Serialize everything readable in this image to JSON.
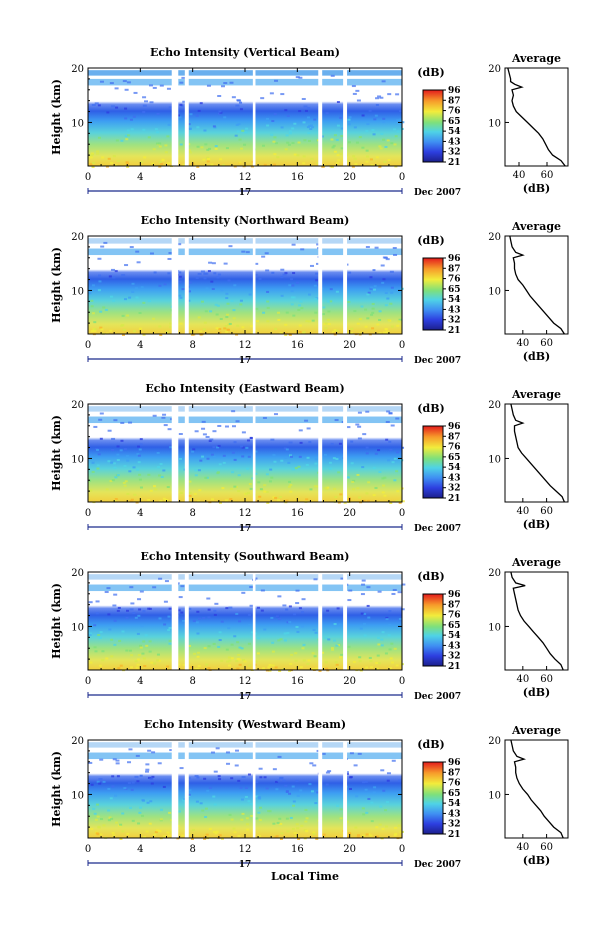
{
  "figure": {
    "xlabel": "Local Time",
    "date_label": "Dec 2007",
    "day_label": "17"
  },
  "chart_data": [
    {
      "type": "heatmap",
      "title": "Echo Intensity (Vertical Beam)",
      "ylabel": "Height (km)",
      "xlim": [
        0,
        24
      ],
      "x_ticks": [
        "0",
        "4",
        "8",
        "12",
        "16",
        "20",
        "0"
      ],
      "ylim": [
        2,
        20
      ],
      "y_ticks": [
        "10",
        "20"
      ],
      "colorbar": {
        "unit": "(dB)",
        "ticks": [
          "96",
          "87",
          "76",
          "65",
          "54",
          "43",
          "32",
          "21"
        ]
      },
      "gaps_hours": [
        [
          6.4,
          6.9
        ],
        [
          7.4,
          7.7
        ],
        [
          12.6,
          12.8
        ],
        [
          17.6,
          17.9
        ],
        [
          19.5,
          19.8
        ]
      ],
      "profile": {
        "title": "Average",
        "xlabel": "(dB)",
        "x_ticks": [
          "40",
          "60"
        ],
        "y_ticks": [
          "10",
          "20"
        ],
        "xlim": [
          30,
          75
        ],
        "points": [
          [
            2,
            73
          ],
          [
            3,
            70
          ],
          [
            4,
            64
          ],
          [
            5,
            61
          ],
          [
            6,
            59
          ],
          [
            7,
            57
          ],
          [
            8,
            54
          ],
          [
            9,
            50
          ],
          [
            10,
            46
          ],
          [
            11,
            42
          ],
          [
            12,
            38
          ],
          [
            13,
            36
          ],
          [
            14,
            35
          ],
          [
            15,
            36
          ],
          [
            16,
            35
          ],
          [
            16.5,
            42
          ],
          [
            17,
            37
          ],
          [
            17.5,
            34
          ],
          [
            18,
            34
          ],
          [
            19,
            33
          ],
          [
            20,
            32
          ]
        ]
      }
    },
    {
      "type": "heatmap",
      "title": "Echo Intensity (Northward Beam)",
      "ylabel": "Height (km)",
      "xlim": [
        0,
        24
      ],
      "x_ticks": [
        "0",
        "4",
        "8",
        "12",
        "16",
        "20",
        "0"
      ],
      "ylim": [
        2,
        20
      ],
      "y_ticks": [
        "10",
        "20"
      ],
      "colorbar": {
        "unit": "(dB)",
        "ticks": [
          "96",
          "87",
          "76",
          "65",
          "54",
          "43",
          "32",
          "21"
        ]
      },
      "gaps_hours": [
        [
          6.4,
          6.9
        ],
        [
          7.4,
          7.7
        ],
        [
          12.6,
          12.8
        ],
        [
          17.6,
          17.9
        ],
        [
          19.5,
          19.8
        ]
      ],
      "profile": {
        "title": "Average",
        "xlabel": "(dB)",
        "x_ticks": [
          "40",
          "60"
        ],
        "y_ticks": [
          "10",
          "20"
        ],
        "xlim": [
          25,
          78
        ],
        "points": [
          [
            2,
            75
          ],
          [
            3,
            72
          ],
          [
            4,
            66
          ],
          [
            5,
            62
          ],
          [
            6,
            58
          ],
          [
            7,
            54
          ],
          [
            8,
            50
          ],
          [
            9,
            46
          ],
          [
            10,
            43
          ],
          [
            11,
            40
          ],
          [
            12,
            36
          ],
          [
            13,
            34
          ],
          [
            14,
            33
          ],
          [
            15,
            33
          ],
          [
            16,
            32
          ],
          [
            16.5,
            40
          ],
          [
            17,
            34
          ],
          [
            18,
            31
          ],
          [
            19,
            30
          ],
          [
            20,
            29
          ]
        ]
      }
    },
    {
      "type": "heatmap",
      "title": "Echo Intensity (Eastward Beam)",
      "ylabel": "Height (km)",
      "xlim": [
        0,
        24
      ],
      "x_ticks": [
        "0",
        "4",
        "8",
        "12",
        "16",
        "20",
        "0"
      ],
      "ylim": [
        2,
        20
      ],
      "y_ticks": [
        "10",
        "20"
      ],
      "colorbar": {
        "unit": "(dB)",
        "ticks": [
          "96",
          "87",
          "76",
          "65",
          "54",
          "43",
          "32",
          "21"
        ]
      },
      "gaps_hours": [
        [
          6.4,
          6.9
        ],
        [
          7.4,
          7.7
        ],
        [
          12.6,
          12.8
        ],
        [
          17.6,
          17.9
        ],
        [
          19.5,
          19.8
        ]
      ],
      "profile": {
        "title": "Average",
        "xlabel": "(dB)",
        "x_ticks": [
          "40",
          "60"
        ],
        "y_ticks": [
          "10",
          "20"
        ],
        "xlim": [
          25,
          78
        ],
        "points": [
          [
            2,
            75
          ],
          [
            3,
            73
          ],
          [
            4,
            68
          ],
          [
            5,
            63
          ],
          [
            6,
            59
          ],
          [
            7,
            55
          ],
          [
            8,
            51
          ],
          [
            9,
            47
          ],
          [
            10,
            43
          ],
          [
            11,
            39
          ],
          [
            12,
            36
          ],
          [
            13,
            35
          ],
          [
            14,
            34
          ],
          [
            15,
            33
          ],
          [
            16,
            33
          ],
          [
            16.5,
            40
          ],
          [
            17,
            34
          ],
          [
            18,
            32
          ],
          [
            19,
            31
          ],
          [
            20,
            30
          ]
        ]
      }
    },
    {
      "type": "heatmap",
      "title": "Echo Intensity (Southward Beam)",
      "ylabel": "Height (km)",
      "xlim": [
        0,
        24
      ],
      "x_ticks": [
        "0",
        "4",
        "8",
        "12",
        "16",
        "20",
        "0"
      ],
      "ylim": [
        2,
        20
      ],
      "y_ticks": [
        "10",
        "20"
      ],
      "colorbar": {
        "unit": "(dB)",
        "ticks": [
          "96",
          "87",
          "76",
          "65",
          "54",
          "43",
          "32",
          "21"
        ]
      },
      "gaps_hours": [
        [
          6.4,
          6.9
        ],
        [
          7.4,
          7.7
        ],
        [
          12.6,
          12.8
        ],
        [
          17.6,
          17.9
        ],
        [
          19.5,
          19.8
        ]
      ],
      "profile": {
        "title": "Average",
        "xlabel": "(dB)",
        "x_ticks": [
          "40",
          "60"
        ],
        "y_ticks": [
          "10",
          "20"
        ],
        "xlim": [
          25,
          78
        ],
        "points": [
          [
            2,
            74
          ],
          [
            3,
            72
          ],
          [
            4,
            67
          ],
          [
            5,
            63
          ],
          [
            6,
            60
          ],
          [
            7,
            57
          ],
          [
            8,
            53
          ],
          [
            9,
            49
          ],
          [
            10,
            45
          ],
          [
            11,
            41
          ],
          [
            12,
            38
          ],
          [
            13,
            36
          ],
          [
            14,
            35
          ],
          [
            15,
            34
          ],
          [
            16,
            33
          ],
          [
            17,
            32
          ],
          [
            17.5,
            42
          ],
          [
            18,
            34
          ],
          [
            19,
            31
          ],
          [
            20,
            30
          ]
        ]
      }
    },
    {
      "type": "heatmap",
      "title": "Echo Intensity (Westward Beam)",
      "ylabel": "Height (km)",
      "xlim": [
        0,
        24
      ],
      "x_ticks": [
        "0",
        "4",
        "8",
        "12",
        "16",
        "20",
        "0"
      ],
      "ylim": [
        2,
        20
      ],
      "y_ticks": [
        "10",
        "20"
      ],
      "colorbar": {
        "unit": "(dB)",
        "ticks": [
          "96",
          "87",
          "76",
          "65",
          "54",
          "43",
          "32",
          "21"
        ]
      },
      "gaps_hours": [
        [
          6.4,
          6.9
        ],
        [
          7.4,
          7.7
        ],
        [
          12.6,
          12.8
        ],
        [
          17.6,
          17.9
        ],
        [
          19.5,
          19.8
        ]
      ],
      "profile": {
        "title": "Average",
        "xlabel": "(dB)",
        "x_ticks": [
          "40",
          "60"
        ],
        "y_ticks": [
          "10",
          "20"
        ],
        "xlim": [
          25,
          78
        ],
        "points": [
          [
            2,
            74
          ],
          [
            3,
            72
          ],
          [
            4,
            66
          ],
          [
            5,
            62
          ],
          [
            6,
            58
          ],
          [
            7,
            55
          ],
          [
            8,
            51
          ],
          [
            9,
            47
          ],
          [
            10,
            44
          ],
          [
            11,
            40
          ],
          [
            12,
            37
          ],
          [
            13,
            35
          ],
          [
            14,
            34
          ],
          [
            15,
            34
          ],
          [
            16,
            33
          ],
          [
            16.5,
            41
          ],
          [
            17,
            35
          ],
          [
            18,
            32
          ],
          [
            19,
            31
          ],
          [
            20,
            30
          ]
        ]
      }
    }
  ]
}
